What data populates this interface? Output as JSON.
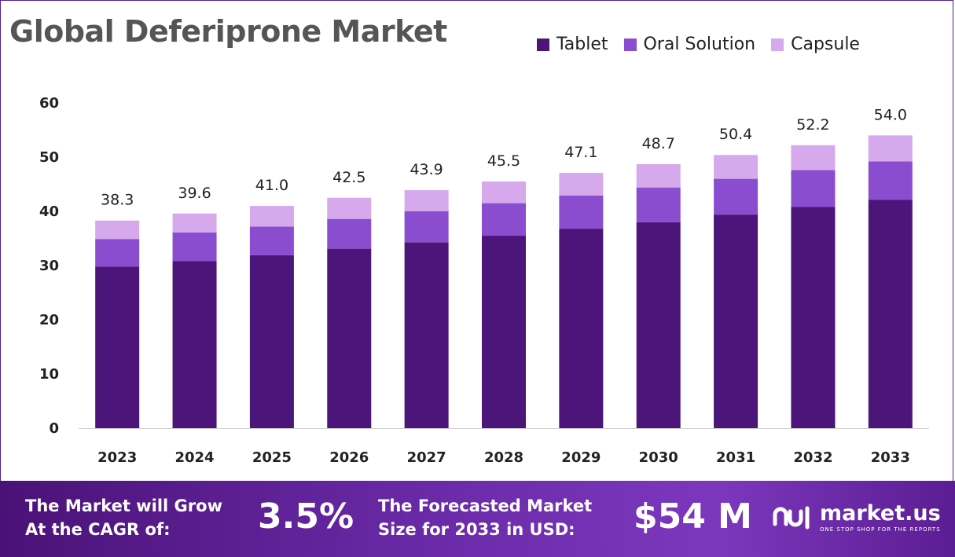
{
  "title": "Global Deferiprone Market",
  "legend": [
    {
      "label": "Tablet",
      "color": "#4b1579"
    },
    {
      "label": "Oral Solution",
      "color": "#8b4dd0"
    },
    {
      "label": "Capsule",
      "color": "#d5a9ec"
    }
  ],
  "chart_data": {
    "type": "bar",
    "stacked": true,
    "categories": [
      "2023",
      "2024",
      "2025",
      "2026",
      "2027",
      "2028",
      "2029",
      "2030",
      "2031",
      "2032",
      "2033"
    ],
    "series": [
      {
        "name": "Tablet",
        "color": "#4b1579",
        "values": [
          29.8,
          30.8,
          31.9,
          33.1,
          34.3,
          35.5,
          36.8,
          38.0,
          39.4,
          40.8,
          42.1
        ]
      },
      {
        "name": "Oral Solution",
        "color": "#8b4dd0",
        "values": [
          5.1,
          5.3,
          5.3,
          5.5,
          5.7,
          6.0,
          6.1,
          6.4,
          6.6,
          6.8,
          7.1
        ]
      },
      {
        "name": "Capsule",
        "color": "#d5a9ec",
        "values": [
          3.4,
          3.5,
          3.8,
          3.9,
          3.9,
          4.0,
          4.2,
          4.3,
          4.4,
          4.6,
          4.8
        ]
      }
    ],
    "totals": [
      "38.3",
      "39.6",
      "41.0",
      "42.5",
      "43.9",
      "45.5",
      "47.1",
      "48.7",
      "50.4",
      "52.2",
      "54.0"
    ],
    "yticks": [
      "0",
      "10",
      "20",
      "30",
      "40",
      "50",
      "60"
    ],
    "ylim": [
      0,
      60
    ],
    "grid": false,
    "legend_position": "top-right"
  },
  "banner": {
    "cagr_label_line1": "The Market will Grow",
    "cagr_label_line2": "At the CAGR of:",
    "cagr_value": "3.5%",
    "forecast_label_line1": "The Forecasted Market",
    "forecast_label_line2": "Size for 2033 in USD:",
    "forecast_value": "$54 M",
    "brand_name": "market.us",
    "brand_tagline": "ONE STOP SHOP FOR THE REPORTS",
    "brand_icon": "market-us-logo-icon"
  }
}
